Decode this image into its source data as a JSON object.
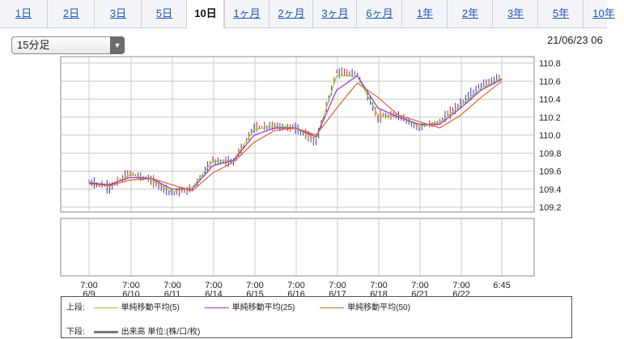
{
  "tabs": [
    "1日",
    "2日",
    "3日",
    "5日",
    "10日",
    "1ヶ月",
    "2ヶ月",
    "3ヶ月",
    "6ヶ月",
    "1年",
    "2年",
    "3年",
    "5年",
    "10年"
  ],
  "active_tab": "10日",
  "interval_select": "15分足",
  "datetime": "21/06/23 06",
  "legend": {
    "upper_label": "上段:",
    "ma5": "単純移動平均(5)",
    "ma25": "単純移動平均(25)",
    "ma50": "単純移動平均(50)",
    "lower_label": "下段:",
    "volume": "出来高 単位:(株/口/枚)"
  },
  "colors": {
    "ma5": "#99cc33",
    "ma25": "#9933cc",
    "ma50": "#e06030",
    "candle_up": "#3333cc",
    "candle_down": "#cc2222",
    "grid": "#c8c8c8",
    "frame": "#888888"
  },
  "chart_data": {
    "type": "line",
    "ylim": [
      109.2,
      110.8
    ],
    "y_ticks": [
      "110.8",
      "110.6",
      "110.4",
      "110.2",
      "110.0",
      "109.8",
      "109.6",
      "109.4",
      "109.2"
    ],
    "x_time_labels": [
      "7:00",
      "7:00",
      "7:00",
      "7:00",
      "7:00",
      "7:00",
      "7:00",
      "7:00",
      "7:00",
      "7:00",
      "6:45"
    ],
    "x_date_labels": [
      "6/9",
      "6/10",
      "6/11",
      "6/14",
      "6/15",
      "6/16",
      "6/17",
      "6/18",
      "6/21",
      "6/22",
      ""
    ],
    "x": [
      "6/9",
      "6/10 00:00",
      "6/10 12:00",
      "6/11",
      "6/11 12:00",
      "6/14",
      "6/14 12:00",
      "6/15",
      "6/15 12:00",
      "6/16",
      "6/16 12:00",
      "6/17",
      "6/17 06:00",
      "6/17 12:00",
      "6/18",
      "6/18 12:00",
      "6/21",
      "6/21 12:00",
      "6/22",
      "6/22 12:00",
      "6/23 06:45"
    ],
    "price": [
      109.48,
      109.42,
      109.58,
      109.5,
      109.36,
      109.4,
      109.72,
      109.7,
      110.08,
      110.1,
      110.08,
      109.92,
      110.7,
      110.68,
      110.2,
      110.22,
      110.08,
      110.15,
      110.35,
      110.55,
      110.65
    ],
    "series": [
      {
        "name": "単純移動平均(5)",
        "values": [
          109.48,
          109.43,
          109.56,
          109.5,
          109.37,
          109.42,
          109.71,
          109.72,
          110.06,
          110.1,
          110.08,
          109.95,
          110.66,
          110.66,
          110.22,
          110.21,
          110.1,
          110.14,
          110.33,
          110.52,
          110.63
        ]
      },
      {
        "name": "単純移動平均(25)",
        "values": [
          109.47,
          109.45,
          109.53,
          109.52,
          109.4,
          109.4,
          109.66,
          109.72,
          110.0,
          110.08,
          110.08,
          109.98,
          110.5,
          110.66,
          110.3,
          110.2,
          110.12,
          110.12,
          110.3,
          110.5,
          110.62
        ]
      },
      {
        "name": "単純移動平均(50)",
        "values": [
          109.46,
          109.44,
          109.5,
          109.52,
          109.45,
          109.38,
          109.58,
          109.7,
          109.92,
          110.05,
          110.08,
          110.0,
          110.3,
          110.58,
          110.42,
          110.22,
          110.15,
          110.08,
          110.22,
          110.42,
          110.6
        ]
      }
    ],
    "lower_panel": "volume",
    "legend_position": "bottom"
  }
}
